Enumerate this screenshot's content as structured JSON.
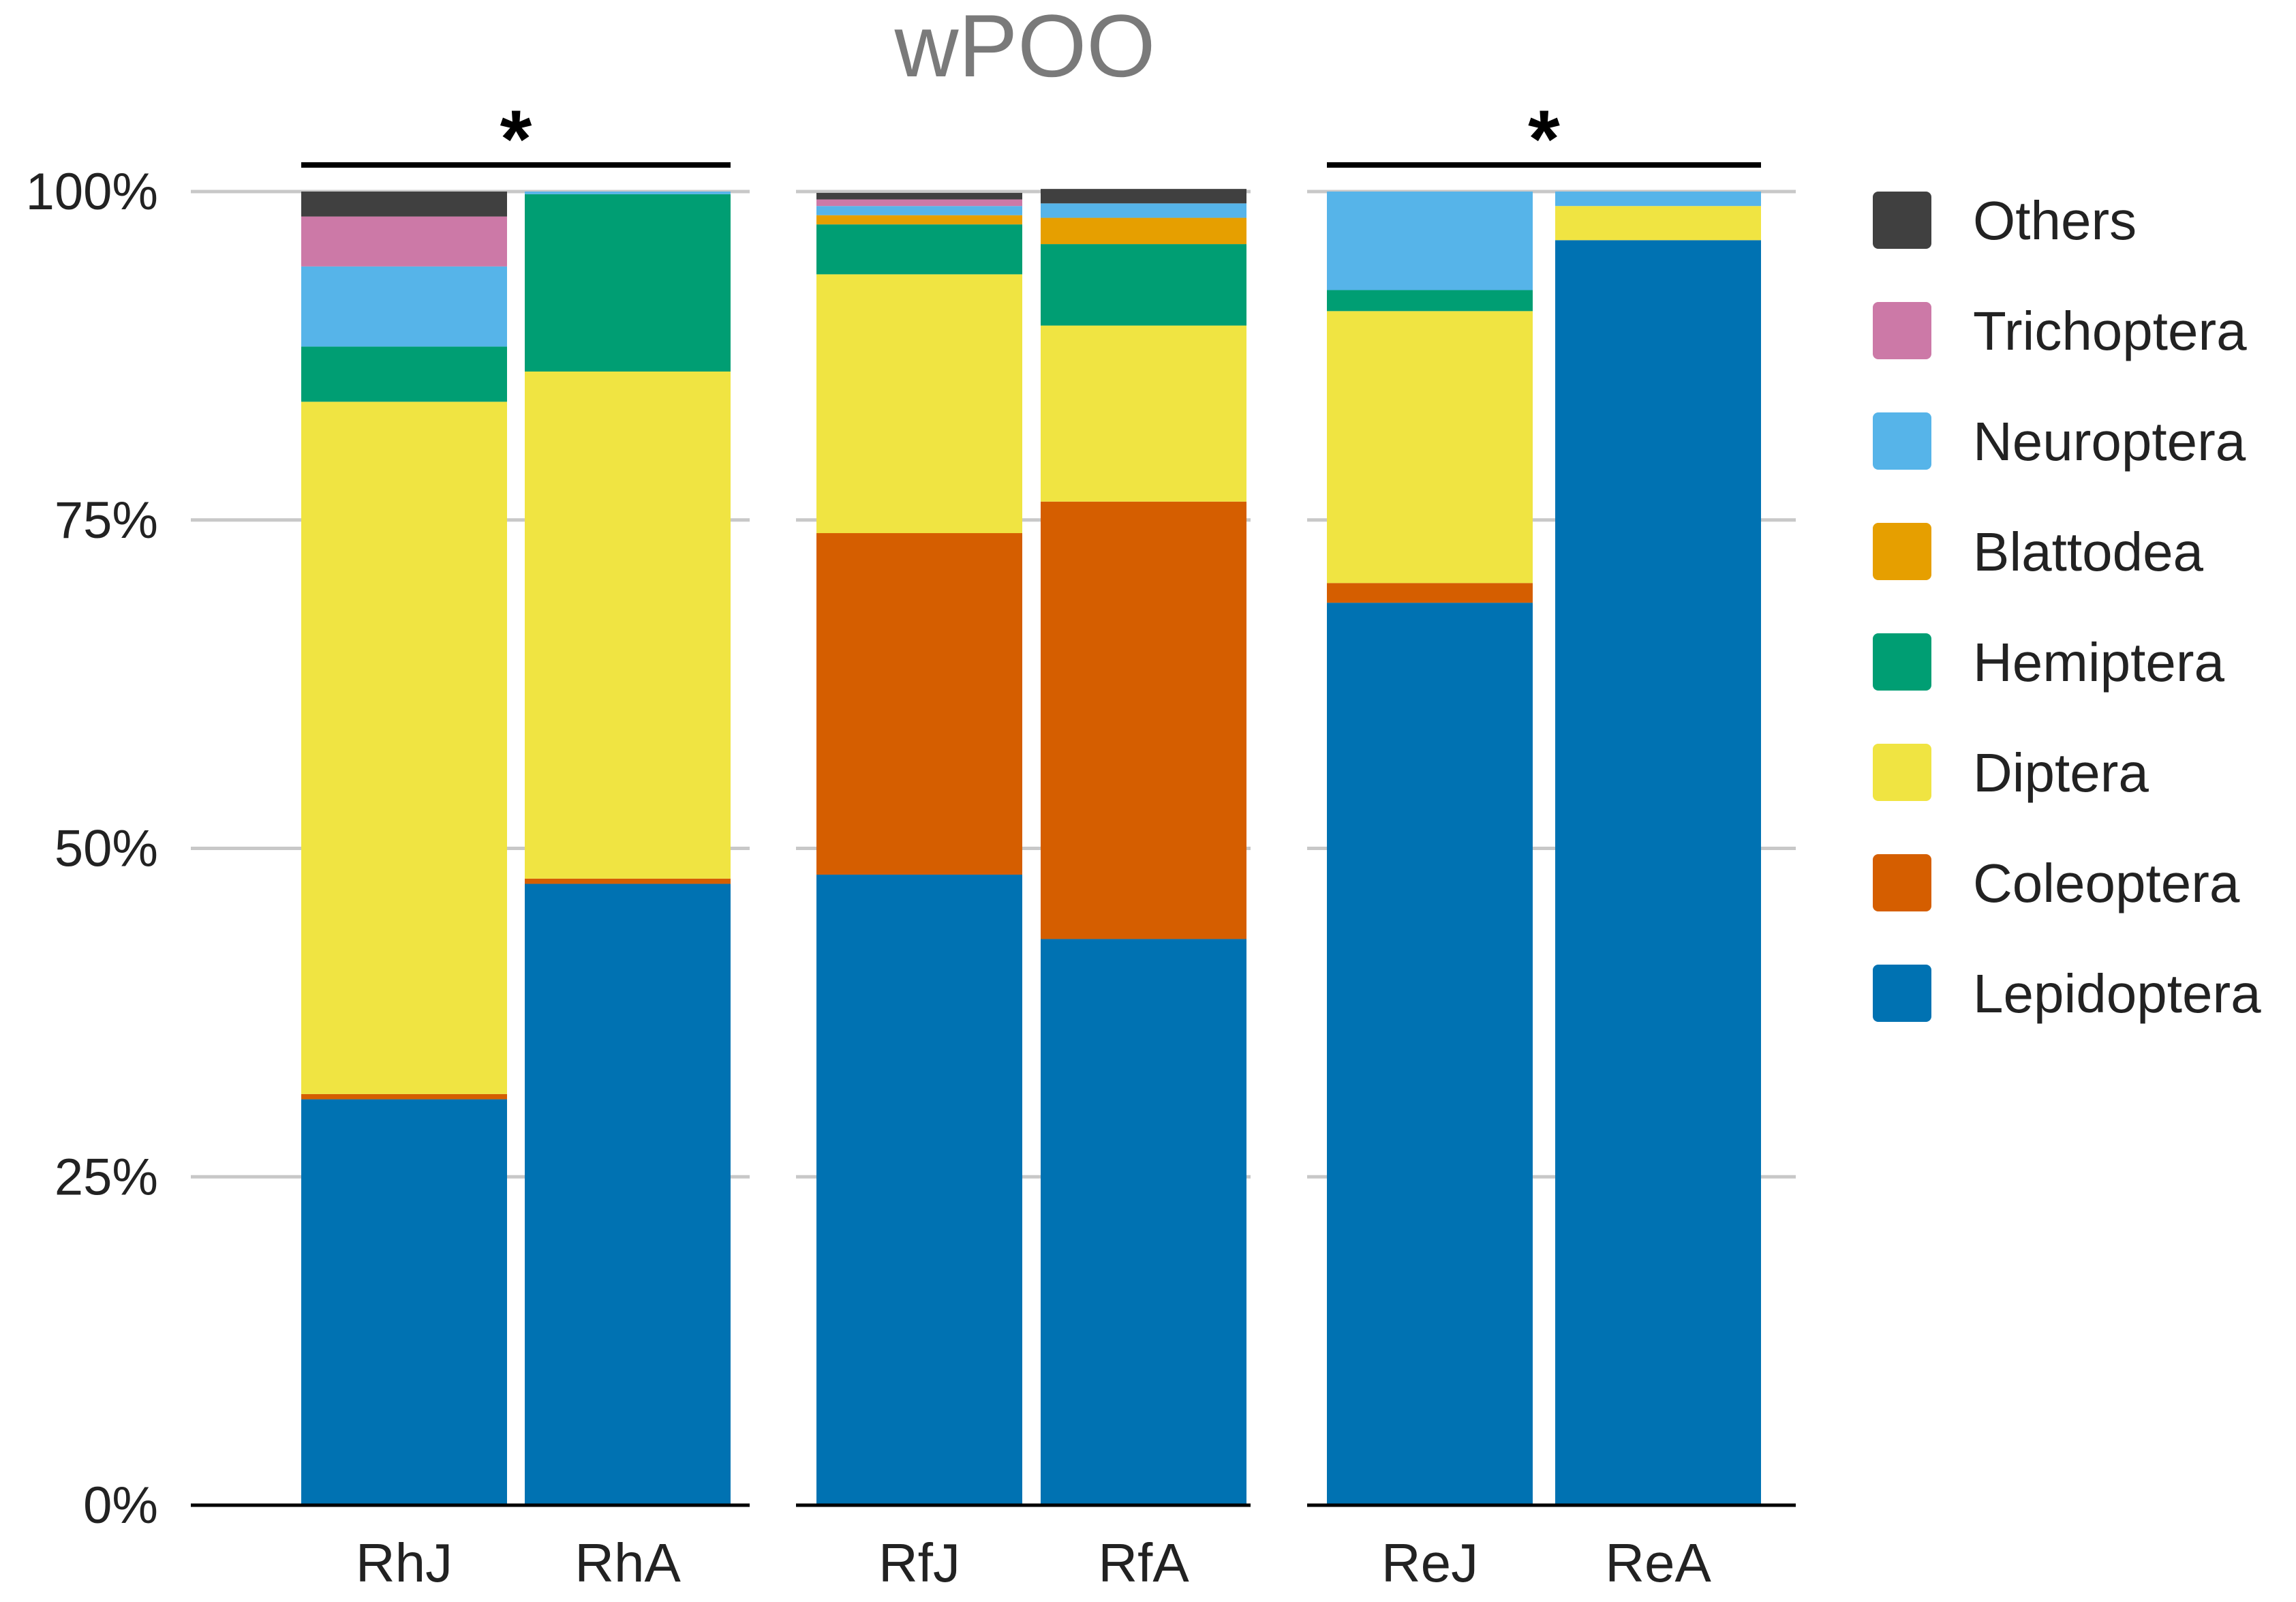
{
  "chart_data": {
    "type": "bar",
    "stacked": true,
    "title": "wPOO",
    "xlabel": "",
    "ylabel": "",
    "ylim": [
      0,
      100
    ],
    "yticks": [
      "0%",
      "25%",
      "50%",
      "75%",
      "100%"
    ],
    "grid": true,
    "legend_position": "right",
    "categories": [
      "RhJ",
      "RhA",
      "RfJ",
      "RfA",
      "ReJ",
      "ReA"
    ],
    "groups": [
      {
        "categories": [
          "RhJ",
          "RhA"
        ],
        "annotation": "*"
      },
      {
        "categories": [
          "RfJ",
          "RfA"
        ],
        "annotation": ""
      },
      {
        "categories": [
          "ReJ",
          "ReA"
        ],
        "annotation": "*"
      }
    ],
    "series": [
      {
        "name": "Lepidoptera",
        "color": "#0072B2",
        "values": [
          30.9,
          47.3,
          48.0,
          43.1,
          68.7,
          96.3
        ]
      },
      {
        "name": "Coleoptera",
        "color": "#D55E00",
        "values": [
          0.4,
          0.4,
          26.0,
          33.3,
          1.5,
          0
        ]
      },
      {
        "name": "Diptera",
        "color": "#F0E442",
        "values": [
          52.7,
          38.6,
          19.7,
          13.4,
          20.7,
          2.6
        ]
      },
      {
        "name": "Hemiptera",
        "color": "#009E73",
        "values": [
          4.2,
          13.5,
          3.8,
          6.2,
          1.6,
          0
        ]
      },
      {
        "name": "Blattodea",
        "color": "#E69F00",
        "values": [
          0,
          0,
          0.7,
          2.0,
          0,
          0
        ]
      },
      {
        "name": "Neuroptera",
        "color": "#56B4E9",
        "values": [
          6.1,
          0.2,
          0.7,
          1.1,
          7.5,
          1.1
        ]
      },
      {
        "name": "Trichoptera",
        "color": "#CC79A7",
        "values": [
          3.8,
          0,
          0.5,
          0,
          0,
          0
        ]
      },
      {
        "name": "Others",
        "color": "#404040",
        "values": [
          1.9,
          0,
          0.5,
          1.1,
          0,
          0
        ]
      }
    ],
    "legend_order": [
      "Others",
      "Trichoptera",
      "Neuroptera",
      "Blattodea",
      "Hemiptera",
      "Diptera",
      "Coleoptera",
      "Lepidoptera"
    ]
  }
}
